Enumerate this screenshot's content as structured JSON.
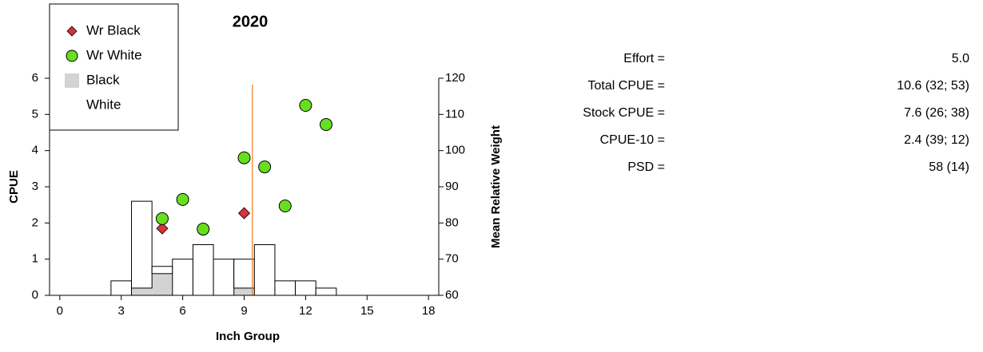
{
  "chart_data": {
    "type": "bar",
    "title": "2020",
    "x_label": "Inch Group",
    "y_label": "CPUE",
    "y2_label": "Mean Relative Weight",
    "xlim": [
      -0.5,
      18.5
    ],
    "xticks": [
      0,
      3,
      6,
      9,
      12,
      15,
      18
    ],
    "ylim": [
      0,
      6
    ],
    "yticks": [
      0,
      1,
      2,
      3,
      4,
      5,
      6
    ],
    "y2lim": [
      60,
      120
    ],
    "y2ticks": [
      60,
      70,
      80,
      90,
      100,
      110,
      120
    ],
    "legend": "top-left",
    "series": [
      {
        "name": "Wr Black",
        "type": "scatter",
        "marker": "diamond",
        "axis": "y2",
        "color": "#d9303a",
        "x": [
          5,
          9
        ],
        "values": [
          78.5,
          82.7
        ]
      },
      {
        "name": "Wr White",
        "type": "scatter",
        "marker": "circle",
        "axis": "y2",
        "color": "#66e01e",
        "x": [
          5,
          6,
          7,
          9,
          10,
          11,
          12,
          13
        ],
        "values": [
          81.2,
          86.5,
          78.3,
          98,
          95.5,
          84.7,
          112.5,
          107.2
        ]
      },
      {
        "name": "Black",
        "type": "bar",
        "color": "#d3d3d3",
        "x": [
          4,
          5,
          9
        ],
        "values": [
          0.2,
          0.6,
          0.2
        ]
      },
      {
        "name": "White",
        "type": "bar",
        "color": "#ffffff",
        "stacked_on": "Black",
        "x": [
          3,
          4,
          5,
          6,
          7,
          8,
          9,
          10,
          11,
          12,
          13
        ],
        "values": [
          0.4,
          2.4,
          0.2,
          1.0,
          1.4,
          1.0,
          0.8,
          1.4,
          0.4,
          0.4,
          0.2
        ]
      }
    ],
    "vline_x": 9.4,
    "vline_color": "#f07d1e"
  },
  "stats": {
    "rows": [
      {
        "label": "Effort =",
        "value": "5.0"
      },
      {
        "label": "Total CPUE =",
        "value": "10.6 (32; 53)"
      },
      {
        "label": "Stock CPUE =",
        "value": "7.6 (26; 38)"
      },
      {
        "label": "CPUE-10 =",
        "value": "2.4 (39; 12)"
      },
      {
        "label": "PSD =",
        "value": "58 (14)"
      }
    ]
  }
}
